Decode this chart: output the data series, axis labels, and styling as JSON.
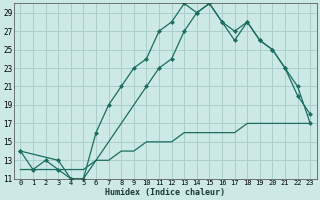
{
  "xlabel": "Humidex (Indice chaleur)",
  "background_color": "#cce9e5",
  "grid_color": "#aacfcc",
  "line_color": "#1a6e60",
  "xlim": [
    -0.5,
    23.5
  ],
  "ylim": [
    11,
    30
  ],
  "yticks": [
    11,
    13,
    15,
    17,
    19,
    21,
    23,
    25,
    27,
    29
  ],
  "xticks": [
    0,
    1,
    2,
    3,
    4,
    5,
    6,
    7,
    8,
    9,
    10,
    11,
    12,
    13,
    14,
    15,
    16,
    17,
    18,
    19,
    20,
    21,
    22,
    23
  ],
  "xtick_labels": [
    "0",
    "1",
    "2",
    "3",
    "4",
    "5",
    "6",
    "7",
    "8",
    "9",
    "10",
    "11",
    "12",
    "13",
    "14",
    "15",
    "16",
    "17",
    "18",
    "19",
    "20",
    "21",
    "22",
    "23"
  ],
  "line1_x": [
    0,
    1,
    2,
    3,
    4,
    5,
    6,
    7,
    8,
    9,
    10,
    11,
    12,
    13,
    14,
    15,
    16,
    17,
    18,
    19,
    20,
    21,
    22,
    23
  ],
  "line1_y": [
    14,
    12,
    13,
    12,
    11,
    11,
    16,
    19,
    21,
    23,
    24,
    27,
    28,
    30,
    29,
    30,
    28,
    27,
    28,
    26,
    25,
    23,
    20,
    18
  ],
  "line2_x": [
    0,
    1,
    2,
    3,
    4,
    5,
    6,
    7,
    8,
    9,
    10,
    11,
    12,
    13,
    14,
    15,
    16,
    17,
    18,
    19,
    20,
    21,
    22,
    23
  ],
  "line2_y": [
    12,
    12,
    12,
    12,
    12,
    12,
    13,
    13,
    14,
    14,
    15,
    15,
    15,
    16,
    16,
    16,
    16,
    16,
    17,
    17,
    17,
    17,
    17,
    17
  ],
  "line3_x": [
    0,
    3,
    4,
    5,
    10,
    11,
    12,
    13,
    14,
    15,
    16,
    17,
    18,
    19,
    20,
    21,
    22,
    23
  ],
  "line3_y": [
    14,
    13,
    11,
    11,
    21,
    23,
    24,
    27,
    29,
    30,
    28,
    26,
    28,
    26,
    25,
    23,
    21,
    17
  ]
}
